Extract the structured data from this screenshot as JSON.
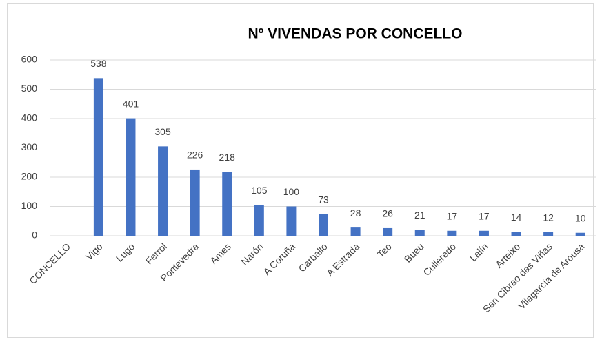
{
  "chart_data": {
    "type": "bar",
    "title": "Nº VIVENDAS POR CONCELLO",
    "categories": [
      "CONCELLO",
      "Vigo",
      "Lugo",
      "Ferrol",
      "Pontevedra",
      "Ames",
      "Narón",
      "A Coruña",
      "Carballo",
      "A Estrada",
      "Teo",
      "Bueu",
      "Culleredo",
      "Lalín",
      "Arteixo",
      "San Cibrao das Viñas",
      "Vilagarcía de Arousa"
    ],
    "values": [
      null,
      538,
      401,
      305,
      226,
      218,
      105,
      100,
      73,
      28,
      26,
      21,
      17,
      17,
      14,
      12,
      10
    ],
    "color": "#4472c4",
    "ylim": [
      0,
      600
    ],
    "yticks": [
      0,
      100,
      200,
      300,
      400,
      500,
      600
    ],
    "grid": true
  }
}
